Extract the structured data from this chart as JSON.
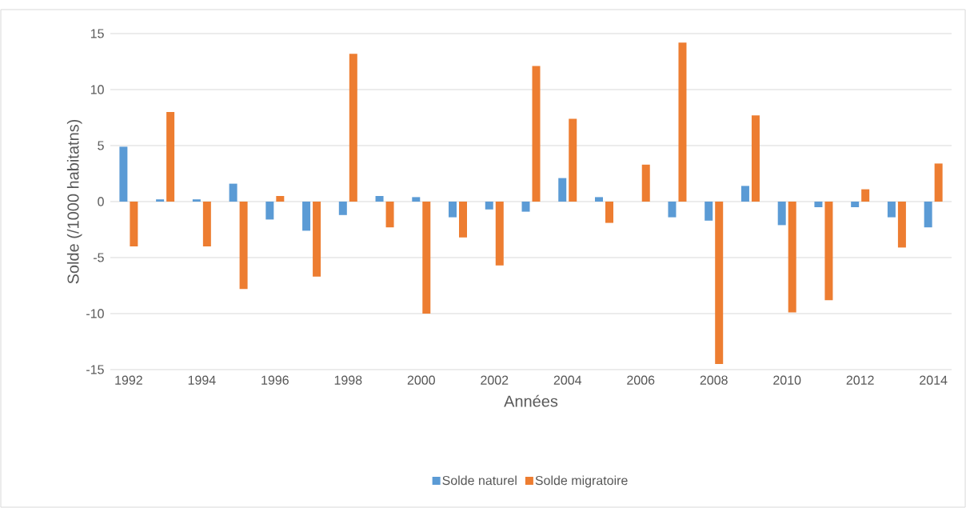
{
  "chart_data": {
    "type": "bar",
    "xlabel": "Années",
    "ylabel": "Solde (/1000 habitatns)",
    "categories": [
      "1992",
      null,
      "1994",
      null,
      "1996",
      null,
      "1998",
      null,
      "2000",
      null,
      "2002",
      null,
      "2004",
      null,
      "2006",
      null,
      "2008",
      null,
      "2010",
      null,
      "2012",
      null,
      "2014"
    ],
    "series": [
      {
        "name": "Solde naturel",
        "color": "#5b9bd5",
        "values": [
          4.9,
          0.2,
          0.2,
          1.6,
          -1.6,
          -2.6,
          -1.2,
          0.5,
          0.4,
          -1.4,
          -0.7,
          -0.9,
          2.1,
          0.4,
          0,
          -1.4,
          -1.7,
          1.4,
          -2.1,
          -0.5,
          -0.5,
          -1.4,
          -2.3
        ]
      },
      {
        "name": "Solde migratoire",
        "color": "#ed7d31",
        "values": [
          -4.0,
          8.0,
          -4.0,
          -7.8,
          0.5,
          -6.7,
          13.2,
          -2.3,
          -10.0,
          -3.2,
          -5.7,
          12.1,
          7.4,
          -1.9,
          3.3,
          14.2,
          -14.5,
          7.7,
          -9.9,
          -8.8,
          1.1,
          -4.1,
          3.4
        ]
      }
    ],
    "ylim": [
      -15,
      15
    ],
    "yticks": [
      -15,
      -10,
      -5,
      0,
      5,
      10,
      15
    ],
    "grid": "y",
    "legend": "bottom"
  }
}
